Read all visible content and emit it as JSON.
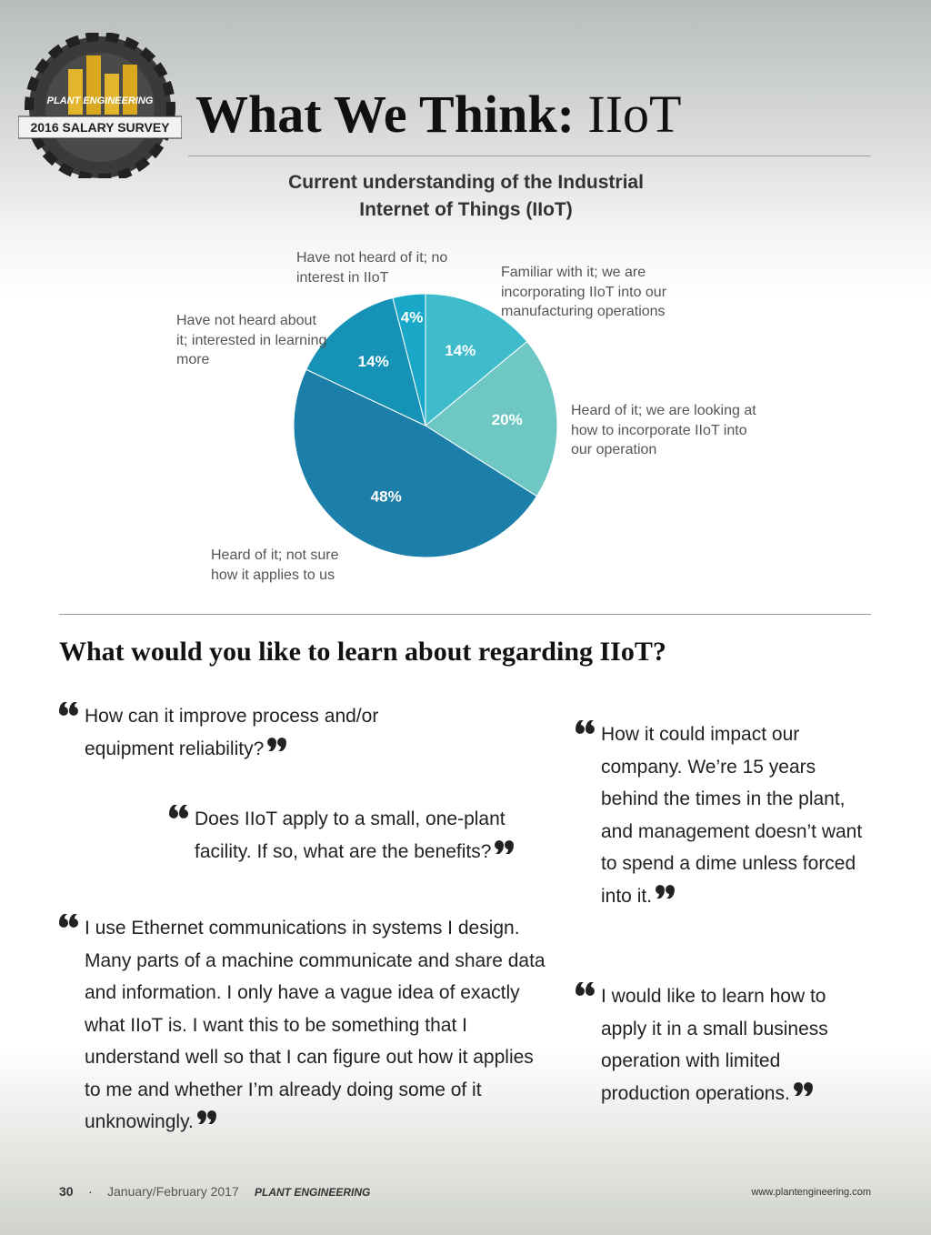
{
  "header": {
    "badge_top": "PLANT ENGINEERING",
    "badge_banner": "2016 SALARY SURVEY",
    "title_bold": "What We Think:",
    "title_regular": "IIoT"
  },
  "chart_data": {
    "type": "pie",
    "title": "Current understanding of the Industrial Internet of Things (IIoT)",
    "categories": [
      "Familiar with it; we are incorporating IIoT into our manufacturing operations",
      "Heard of it; we are looking at how to incorporate IIoT into our operation",
      "Heard of it; not sure how it applies to us",
      "Have not heard about it; interested in learning more",
      "Have not heard of it; no interest in IIoT"
    ],
    "values": [
      14,
      20,
      48,
      14,
      4
    ],
    "value_labels": [
      "14%",
      "20%",
      "48%",
      "14%",
      "4%"
    ],
    "colors": [
      "#3fbccc",
      "#6fc7c3",
      "#1c7fa9",
      "#1592b6",
      "#1aa8c8"
    ]
  },
  "section": {
    "heading": "What would you like to learn about regarding IIoT?",
    "quotes": [
      "How can it improve process and/or equipment reliability?",
      "Does IIoT apply to a small, one-plant facility. If so, what are the benefits?",
      "I use Ethernet communications in systems I design. Many parts of a machine communicate and share data and information. I only have a vague idea of exactly what IIoT is. I want this to be something that I understand well so that I can figure out how it applies to me and whether I’m already doing some of it unknowingly.",
      "How it could impact our company. We’re 15 years behind the times in the plant, and management doesn’t want to spend a dime unless forced into it.",
      "I would like to learn how to apply it in a small business operation with limited production operations."
    ]
  },
  "footer": {
    "page": "30",
    "separator": "·",
    "issue": "January/February 2017",
    "magazine": "Plant Engineering",
    "url": "www.plantengineering.com"
  }
}
